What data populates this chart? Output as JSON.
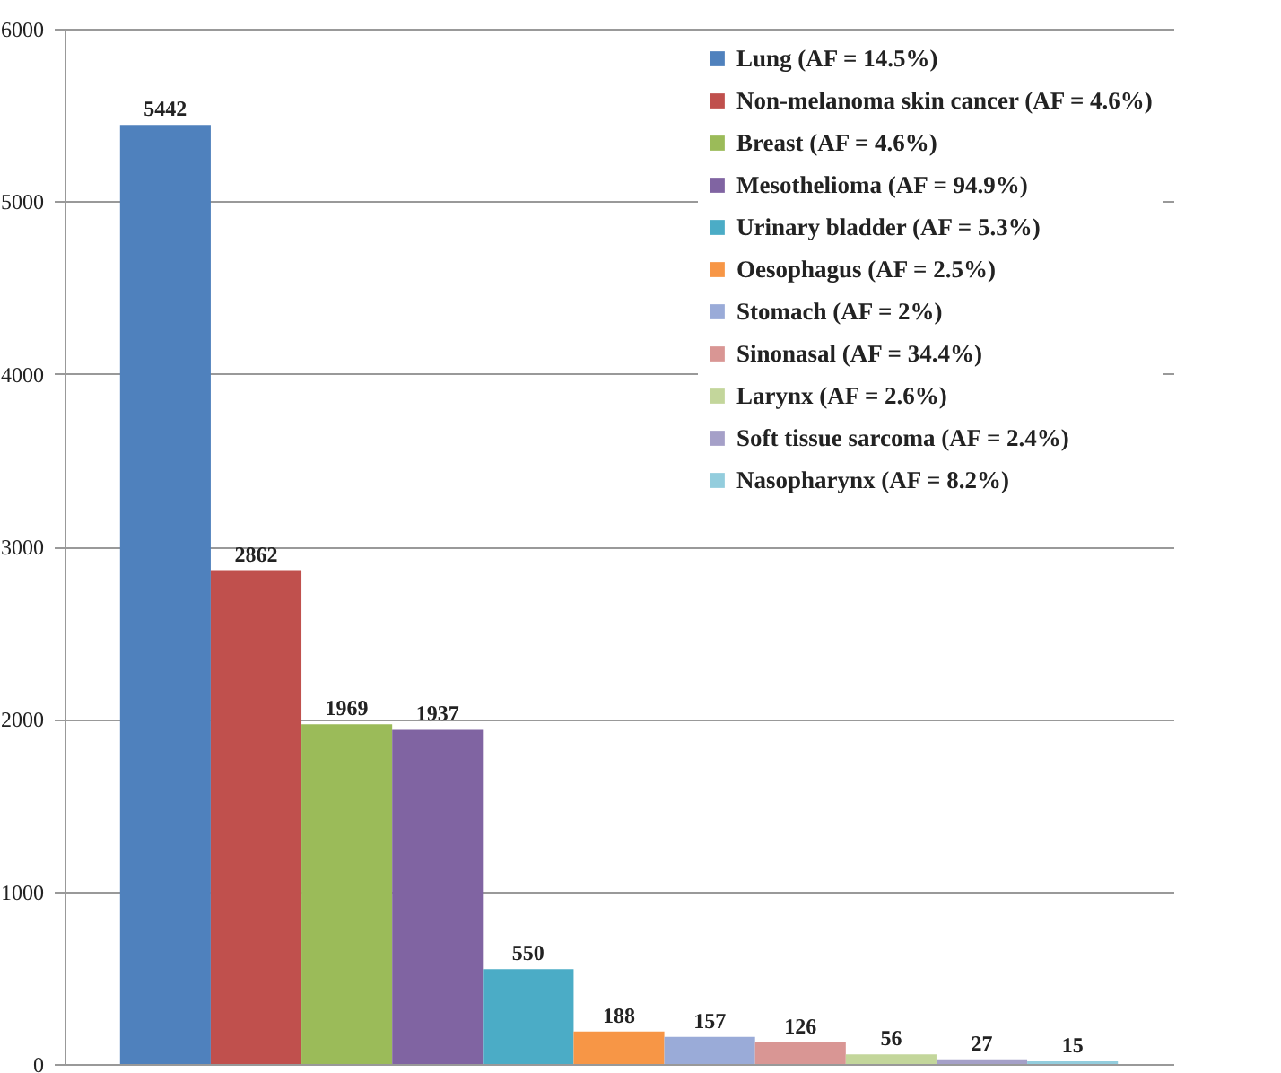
{
  "chart_data": {
    "type": "bar",
    "categories": [
      null
    ],
    "series": [
      {
        "name": "Lung  (AF = 14.5%)",
        "color": "#4f81bd",
        "values": [
          5442
        ]
      },
      {
        "name": "Non-melanoma skin cancer (AF = 4.6%)",
        "color": "#c0504d",
        "values": [
          2862
        ]
      },
      {
        "name": "Breast (AF = 4.6%)",
        "color": "#9bbb59",
        "values": [
          1969
        ]
      },
      {
        "name": "Mesothelioma (AF = 94.9%)",
        "color": "#8064a2",
        "values": [
          1937
        ]
      },
      {
        "name": "Urinary bladder (AF = 5.3%)",
        "color": "#4bacc6",
        "values": [
          550
        ]
      },
      {
        "name": "Oesophagus (AF = 2.5%)",
        "color": "#f79646",
        "values": [
          188
        ]
      },
      {
        "name": "Stomach (AF = 2%)",
        "color": "#9aabd8",
        "values": [
          157
        ]
      },
      {
        "name": "Sinonasal  (AF = 34.4%)",
        "color": "#d99694",
        "values": [
          126
        ]
      },
      {
        "name": "Larynx (AF = 2.6%)",
        "color": "#c3d69b",
        "values": [
          56
        ]
      },
      {
        "name": "Soft tissue sarcoma (AF = 2.4%)",
        "color": "#a5a0c8",
        "values": [
          27
        ]
      },
      {
        "name": "Nasopharynx (AF = 8.2%)",
        "color": "#93cddd",
        "values": [
          15
        ]
      }
    ],
    "ylim": [
      0,
      6000
    ],
    "yticks": [
      0,
      1000,
      2000,
      3000,
      4000,
      5000,
      6000
    ],
    "grid": "y",
    "legend": "top right",
    "data_labels": true,
    "tick_labels": "y"
  }
}
